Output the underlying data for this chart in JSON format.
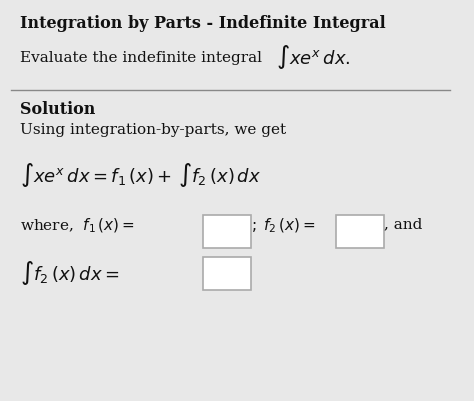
{
  "title": "Integration by Parts - Indefinite Integral",
  "line1": "Evaluate the indefinite integral",
  "line1_math": "$\\int xe^{x}\\, dx.$",
  "section_label": "Solution",
  "solution_text": "Using integration-by-parts, we get",
  "equation_main": "$\\int xe^{x}\\, dx = f_1\\,(x) + \\int f_2\\,(x)\\, dx$",
  "where_text": "where,  $f_1\\,(x) =$",
  "f2_text": "$;\\; f_2\\,(x) =$",
  "and_text": ", and",
  "integral_f2": "$\\int f_2\\,(x)\\, dx =$",
  "bg_color": "#e8e8e8",
  "text_color": "#111111",
  "box_color": "#ffffff",
  "box_edge_color": "#aaaaaa",
  "separator_color": "#888888"
}
